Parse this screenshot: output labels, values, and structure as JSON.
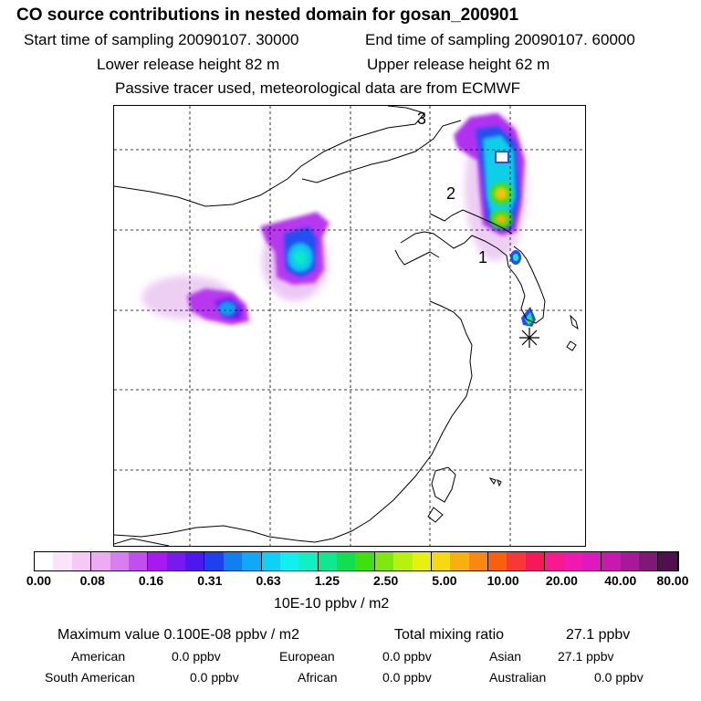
{
  "header": {
    "title": "CO  source contributions in nested domain for gosan_200901",
    "start_label": "Start time of sampling 20090107. 30000",
    "end_label": "End time of sampling 20090107. 60000",
    "lower_label": "Lower release height   82 m",
    "upper_label": "Upper release height   62 m",
    "info": "Passive tracer used, meteorological data are from ECMWF"
  },
  "map": {
    "region_labels": [
      "1",
      "2",
      "3"
    ],
    "receptor_marker": "asterisk-icon"
  },
  "colorbar": {
    "ticks": [
      "0.00",
      "0.08",
      "0.16",
      "0.31",
      "0.63",
      "1.25",
      "2.50",
      "5.00",
      "10.00",
      "20.00",
      "40.00",
      "80.00"
    ],
    "units": "10E-10 ppbv / m2",
    "colors": [
      "#ffffff",
      "#fbe3fb",
      "#f6c8f6",
      "#eeaaf2",
      "#d67ef2",
      "#c04ef0",
      "#a818f0",
      "#7a18f0",
      "#4d18f0",
      "#2040f0",
      "#1080f0",
      "#10a8f8",
      "#10d0f8",
      "#10f0f0",
      "#10f0c0",
      "#10e890",
      "#10e050",
      "#40e010",
      "#80e810",
      "#b8f010",
      "#e8f010",
      "#f8d810",
      "#f8b010",
      "#f88810",
      "#f86010",
      "#f83838",
      "#f81858",
      "#f81890",
      "#f018b0",
      "#e018c0",
      "#c818b0",
      "#a81898",
      "#801878",
      "#501050"
    ]
  },
  "stats": {
    "max_label": "Maximum value  0.100E-08 ppbv / m2",
    "total_label": "Total mixing ratio",
    "total_value": "27.1 ppbv",
    "american_label": "American",
    "american_value": "0.0 ppbv",
    "european_label": "European",
    "european_value": "0.0 ppbv",
    "asian_label": "Asian",
    "asian_value": "27.1 ppbv",
    "south_american_label": "South American",
    "south_american_value": "0.0 ppbv",
    "african_label": "African",
    "african_value": "0.0 ppbv",
    "australian_label": "Australian",
    "australian_value": "0.0 ppbv"
  }
}
